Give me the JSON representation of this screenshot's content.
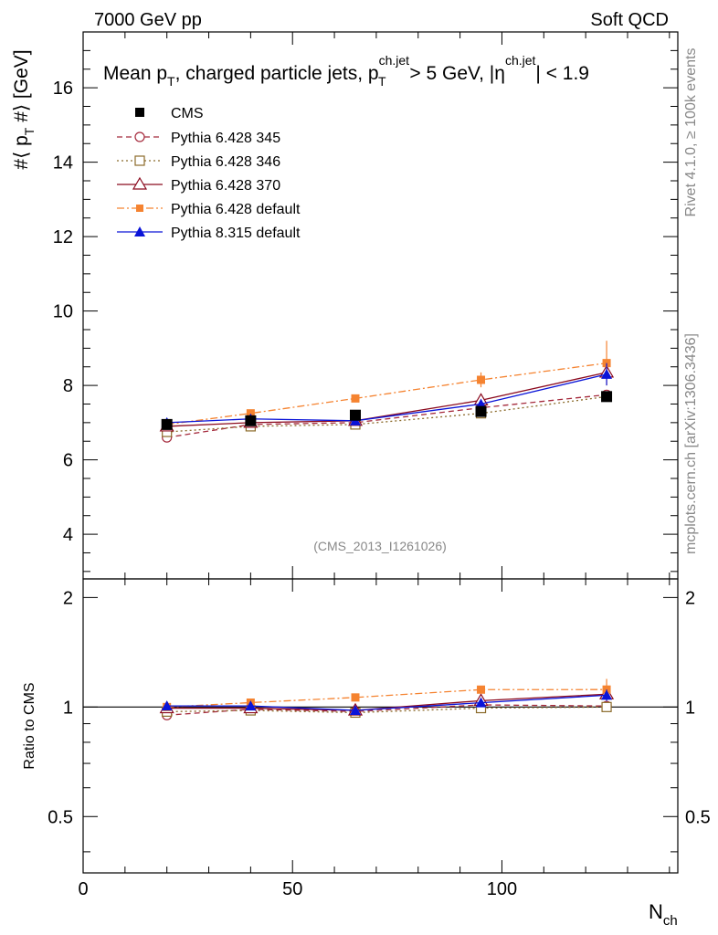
{
  "header": {
    "left": "7000 GeV pp",
    "right": "Soft QCD"
  },
  "side_text": {
    "rivet": "Rivet 4.1.0, ≥ 100k events",
    "mcplots": "mcplots.cern.ch [arXiv:1306.3436]"
  },
  "colors": {
    "cms": "#000000",
    "p345": "#a52a3c",
    "p346": "#8b6a2a",
    "p370": "#8b0a1e",
    "pdefault": "#f58330",
    "p8": "#0a14d8"
  },
  "chart_data": {
    "type": "line",
    "title_parts": {
      "t1": "Mean p",
      "t1_sub": "T",
      "t2": ", charged particle jets, p",
      "t2_sup": "ch.jet",
      "t2_sub": "T",
      "t3": " > 5 GeV,  |η",
      "t3_sup": "ch.jet",
      "t4": "| < 1.9"
    },
    "ylabel": "#⟨ p_T #⟩ [GeV]",
    "ylabel_parts": {
      "a": "#⟨ p",
      "sub": "T",
      "b": " #⟩ [GeV]"
    },
    "xlabel_parts": {
      "main": "N",
      "sub": "ch"
    },
    "ratio_ylabel": "Ratio to CMS",
    "watermark": "(CMS_2013_I1261026)",
    "xlim": [
      0,
      142
    ],
    "ylim": [
      2.8,
      17.5
    ],
    "ratio_ylim": [
      0.35,
      2.25
    ],
    "x_ticks": [
      0,
      50,
      100
    ],
    "y_ticks": [
      4,
      6,
      8,
      10,
      12,
      14,
      16
    ],
    "ratio_ticks": [
      0.5,
      1,
      2
    ],
    "x": [
      20,
      40,
      65,
      95,
      125
    ],
    "series": [
      {
        "name": "CMS",
        "key": "cms",
        "marker": "square-filled",
        "dash": "none",
        "values": [
          6.95,
          7.05,
          7.2,
          7.3,
          7.7
        ],
        "errors": [
          0.05,
          0.05,
          0.06,
          0.08,
          0.12
        ]
      },
      {
        "name": "Pythia 6.428 345",
        "key": "p345",
        "marker": "circle-open",
        "dash": "6,4",
        "values": [
          6.6,
          6.95,
          7.0,
          7.4,
          7.75
        ],
        "errors": [
          0,
          0,
          0,
          0.05,
          0.1
        ]
      },
      {
        "name": "Pythia 6.428 346",
        "key": "p346",
        "marker": "square-open",
        "dash": "2,3",
        "values": [
          6.75,
          6.9,
          6.95,
          7.25,
          7.7
        ],
        "errors": [
          0,
          0,
          0,
          0,
          0.1
        ]
      },
      {
        "name": "Pythia 6.428 370",
        "key": "p370",
        "marker": "triangle-open",
        "dash": "none",
        "values": [
          6.9,
          7.0,
          7.05,
          7.6,
          8.35
        ],
        "errors": [
          0,
          0,
          0,
          0,
          0.15
        ]
      },
      {
        "name": "Pythia 6.428 default",
        "key": "pdefault",
        "marker": "square-small-filled",
        "dash": "8,3,2,3",
        "values": [
          6.95,
          7.25,
          7.65,
          8.15,
          8.6
        ],
        "errors": [
          0,
          0,
          0.05,
          0.2,
          0.6
        ]
      },
      {
        "name": "Pythia 8.315 default",
        "key": "p8",
        "marker": "triangle-filled",
        "dash": "none",
        "values": [
          7.0,
          7.1,
          7.05,
          7.5,
          8.3
        ],
        "errors": [
          0,
          0,
          0,
          0,
          0.3
        ]
      }
    ]
  }
}
